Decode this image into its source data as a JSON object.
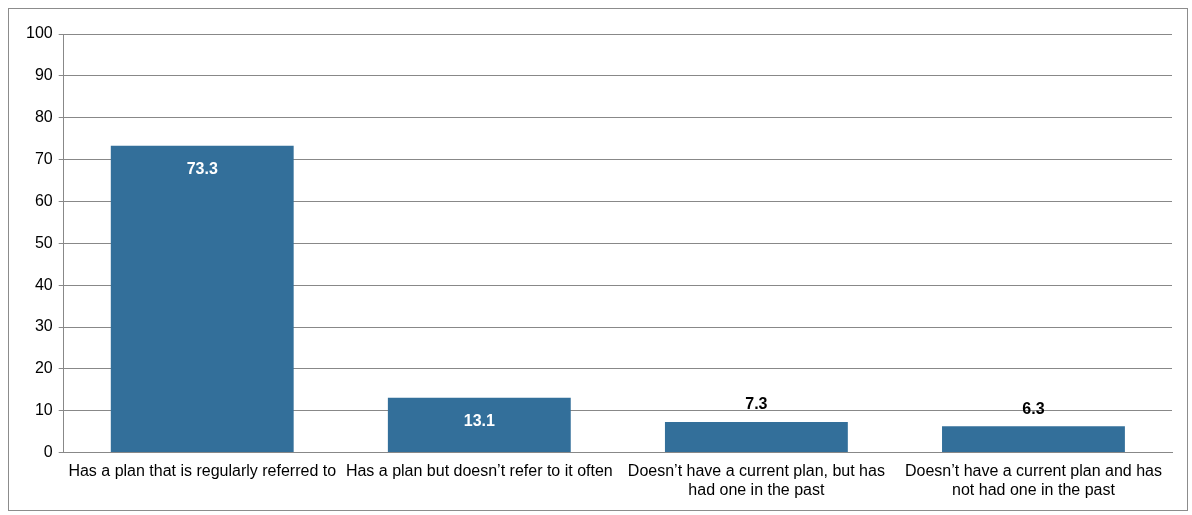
{
  "chart_data": {
    "type": "bar",
    "categories": [
      "Has a plan that is regularly referred to",
      "Has a plan but doesn’t refer to it often",
      "Doesn’t have a current plan, but has had one in the past",
      "Doesn’t have a current plan and has not had one in the past"
    ],
    "values": [
      73.3,
      13.1,
      7.3,
      6.3
    ],
    "color": "#336f9a",
    "ylim": [
      0,
      100
    ],
    "yticks": [
      0,
      10,
      20,
      30,
      40,
      50,
      60,
      70,
      80,
      90,
      100
    ],
    "grid": "y",
    "legend": false,
    "data_labels": true
  }
}
